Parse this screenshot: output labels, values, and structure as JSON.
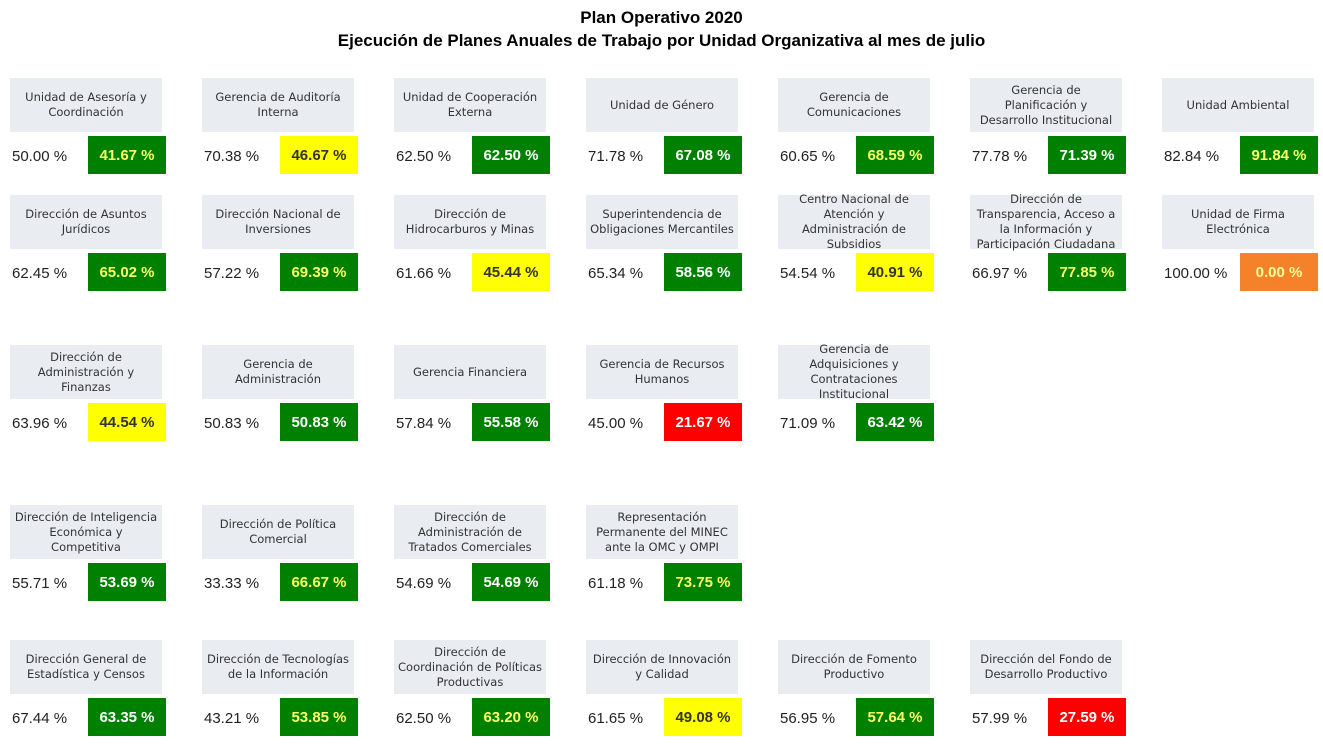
{
  "header": {
    "title": "Plan Operativo 2020",
    "subtitle": "Ejecución de Planes Anuales de Trabajo por Unidad Organizativa al mes de julio"
  },
  "rows": [
    [
      {
        "name": "Unidad de Asesoría y Coordinación",
        "planned": "50.00 %",
        "executed": "41.67 %",
        "color": "#008000",
        "text_color": "#ffff66"
      },
      {
        "name": "Gerencia de Auditoría Interna",
        "planned": "70.38 %",
        "executed": "46.67 %",
        "color": "#ffff00",
        "text_color": "#333333"
      },
      {
        "name": "Unidad de Cooperación Externa",
        "planned": "62.50 %",
        "executed": "62.50 %",
        "color": "#008000",
        "text_color": "#ffffff"
      },
      {
        "name": "Unidad de Género",
        "planned": "71.78 %",
        "executed": "67.08 %",
        "color": "#008000",
        "text_color": "#ffffff"
      },
      {
        "name": "Gerencia de Comunicaciones",
        "planned": "60.65 %",
        "executed": "68.59 %",
        "color": "#008000",
        "text_color": "#ffff66"
      },
      {
        "name": "Gerencia de Planificación y Desarrollo Institucional",
        "planned": "77.78 %",
        "executed": "71.39 %",
        "color": "#008000",
        "text_color": "#ffffff"
      },
      {
        "name": "Unidad Ambiental",
        "planned": "82.84 %",
        "executed": "91.84 %",
        "color": "#008000",
        "text_color": "#ffff66"
      }
    ],
    [
      {
        "name": "Dirección de Asuntos Jurídicos",
        "planned": "62.45 %",
        "executed": "65.02 %",
        "color": "#008000",
        "text_color": "#ffff66"
      },
      {
        "name": "Dirección Nacional de Inversiones",
        "planned": "57.22 %",
        "executed": "69.39 %",
        "color": "#008000",
        "text_color": "#ffff66"
      },
      {
        "name": "Dirección de Hidrocarburos y Minas",
        "planned": "61.66 %",
        "executed": "45.44 %",
        "color": "#ffff00",
        "text_color": "#333333"
      },
      {
        "name": "Superintendencia de Obligaciones Mercantiles",
        "planned": "65.34 %",
        "executed": "58.56 %",
        "color": "#008000",
        "text_color": "#ffffff"
      },
      {
        "name": "Centro Nacional de Atención y Administración de Subsidios",
        "planned": "54.54 %",
        "executed": "40.91 %",
        "color": "#ffff00",
        "text_color": "#333333"
      },
      {
        "name": "Dirección de Transparencia, Acceso a la Información y Participación Ciudadana",
        "planned": "66.97 %",
        "executed": "77.85 %",
        "color": "#008000",
        "text_color": "#ffff66"
      },
      {
        "name": "Unidad de Firma Electrónica",
        "planned": "100.00 %",
        "executed": "0.00 %",
        "color": "#f5822a",
        "text_color": "#ffff99"
      }
    ],
    [
      {
        "name": "Dirección de Administración y Finanzas",
        "planned": "63.96 %",
        "executed": "44.54 %",
        "color": "#ffff00",
        "text_color": "#333333"
      },
      {
        "name": "Gerencia de Administración",
        "planned": "50.83 %",
        "executed": "50.83 %",
        "color": "#008000",
        "text_color": "#ffffff"
      },
      {
        "name": "Gerencia Financiera",
        "planned": "57.84 %",
        "executed": "55.58 %",
        "color": "#008000",
        "text_color": "#ffffff"
      },
      {
        "name": "Gerencia de Recursos Humanos",
        "planned": "45.00 %",
        "executed": "21.67 %",
        "color": "#ff0000",
        "text_color": "#ffffff"
      },
      {
        "name": "Gerencia de Adquisiciones y Contrataciones Institucional",
        "planned": "71.09 %",
        "executed": "63.42 %",
        "color": "#008000",
        "text_color": "#ffffff"
      }
    ],
    [
      {
        "name": "Dirección de Inteligencia Económica y Competitiva",
        "planned": "55.71 %",
        "executed": "53.69 %",
        "color": "#008000",
        "text_color": "#ffffff"
      },
      {
        "name": "Dirección de Política Comercial",
        "planned": "33.33 %",
        "executed": "66.67 %",
        "color": "#008000",
        "text_color": "#ffff66"
      },
      {
        "name": "Dirección de Administración de Tratados Comerciales",
        "planned": "54.69 %",
        "executed": "54.69 %",
        "color": "#008000",
        "text_color": "#ffffff"
      },
      {
        "name": "Representación Permanente del MINEC ante la OMC y OMPI",
        "planned": "61.18 %",
        "executed": "73.75 %",
        "color": "#008000",
        "text_color": "#ffff66"
      }
    ],
    [
      {
        "name": "Dirección General de Estadística y Censos",
        "planned": "67.44 %",
        "executed": "63.35 %",
        "color": "#008000",
        "text_color": "#ffffff"
      },
      {
        "name": "Dirección de Tecnologías de la Información",
        "planned": "43.21 %",
        "executed": "53.85 %",
        "color": "#008000",
        "text_color": "#ffff66"
      },
      {
        "name": "Dirección de Coordinación de Políticas Productivas",
        "planned": "62.50 %",
        "executed": "63.20 %",
        "color": "#008000",
        "text_color": "#ffff66"
      },
      {
        "name": "Dirección de Innovación y Calidad",
        "planned": "61.65 %",
        "executed": "49.08 %",
        "color": "#ffff00",
        "text_color": "#333333"
      },
      {
        "name": "Dirección de Fomento Productivo",
        "planned": "56.95 %",
        "executed": "57.64 %",
        "color": "#008000",
        "text_color": "#ffff66"
      },
      {
        "name": "Dirección del Fondo de Desarrollo Productivo",
        "planned": "57.99 %",
        "executed": "27.59 %",
        "color": "#ff0000",
        "text_color": "#ffffff"
      }
    ]
  ]
}
